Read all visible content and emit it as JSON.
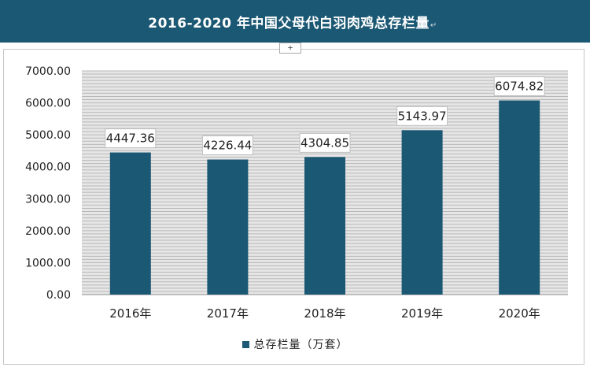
{
  "title": "2016-2020 年中国父母代白羽肉鸡总存栏量",
  "title_suffix_mark": "↵",
  "expand_handle_label": "+",
  "colors": {
    "title_bg": "#1b5874",
    "bar": "#1b5874",
    "grid": "#b8b8b8",
    "plot_bg": "#e6e6e6"
  },
  "chart_data": {
    "type": "bar",
    "categories": [
      "2016年",
      "2017年",
      "2018年",
      "2019年",
      "2020年"
    ],
    "series": [
      {
        "name": "总存栏量（万套）",
        "values": [
          4447.36,
          4226.44,
          4304.85,
          5143.97,
          6074.82
        ]
      }
    ],
    "data_labels": [
      "4447.36",
      "4226.44",
      "4304.85",
      "5143.97",
      "6074.82"
    ],
    "y_ticks": [
      "0.00",
      "1000.00",
      "2000.00",
      "3000.00",
      "4000.00",
      "5000.00",
      "6000.00",
      "7000.00"
    ],
    "ylim": [
      0,
      7000
    ],
    "grid": true,
    "legend_position": "bottom",
    "xlabel": "",
    "ylabel": ""
  }
}
